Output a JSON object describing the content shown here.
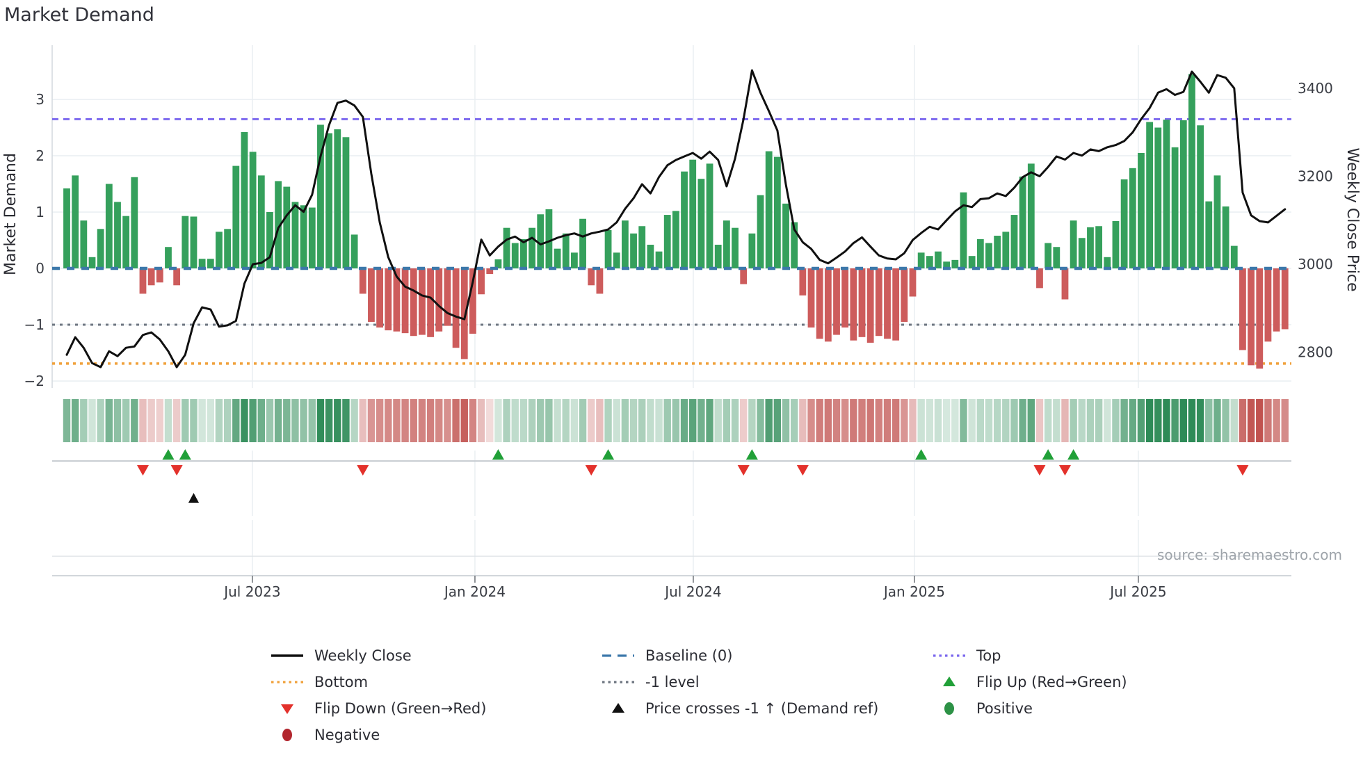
{
  "title": "Market Demand",
  "source": "source: sharemaestro.com",
  "axes": {
    "left_label": "Market Demand",
    "right_label": "Weekly Close Price",
    "left_ticks": [
      3,
      2,
      1,
      0,
      -1,
      -2
    ],
    "right_ticks": [
      3400,
      3200,
      3000,
      2800
    ],
    "x_ticks": [
      {
        "label": "Jul 2023",
        "week": 21.94
      },
      {
        "label": "Jan 2024",
        "week": 48.25
      },
      {
        "label": "Jul 2024",
        "week": 74.06
      },
      {
        "label": "Jan 2025",
        "week": 100.2
      },
      {
        "label": "Jul 2025",
        "week": 126.67
      }
    ]
  },
  "chart_data": {
    "type": "bar+line",
    "x_unit": "week_index",
    "demand_ylim": [
      -2.1,
      3.65
    ],
    "price_ylim": [
      2755,
      3500
    ],
    "levels": {
      "baseline": 0,
      "top": 2.65,
      "bottom": -1.69,
      "minus1": -1
    },
    "demand": [
      1.42,
      1.65,
      0.85,
      0.2,
      0.7,
      1.5,
      1.18,
      0.93,
      1.62,
      -0.45,
      -0.3,
      -0.25,
      0.38,
      -0.3,
      0.93,
      0.92,
      0.17,
      0.17,
      0.65,
      0.7,
      1.82,
      2.42,
      2.07,
      1.65,
      1.0,
      1.55,
      1.45,
      1.18,
      1.12,
      1.08,
      2.55,
      2.4,
      2.47,
      2.33,
      0.6,
      -0.45,
      -0.95,
      -1.05,
      -1.1,
      -1.12,
      -1.15,
      -1.2,
      -1.18,
      -1.22,
      -1.12,
      -1.02,
      -1.41,
      -1.61,
      -1.16,
      -0.46,
      -0.1,
      0.16,
      0.72,
      0.45,
      0.52,
      0.72,
      0.96,
      1.05,
      0.35,
      0.62,
      0.28,
      0.88,
      -0.3,
      -0.45,
      0.68,
      0.28,
      0.85,
      0.62,
      0.75,
      0.42,
      0.3,
      0.95,
      1.02,
      1.72,
      1.93,
      1.59,
      1.86,
      0.42,
      0.85,
      0.72,
      -0.28,
      0.62,
      1.3,
      2.08,
      1.98,
      1.15,
      0.82,
      -0.48,
      -1.05,
      -1.25,
      -1.3,
      -1.18,
      -1.05,
      -1.28,
      -1.22,
      -1.32,
      -1.2,
      -1.25,
      -1.28,
      -0.95,
      -0.5,
      0.28,
      0.22,
      0.3,
      0.12,
      0.15,
      1.35,
      0.22,
      0.52,
      0.45,
      0.58,
      0.65,
      0.95,
      1.63,
      1.86,
      -0.35,
      0.45,
      0.38,
      -0.55,
      0.85,
      0.54,
      0.73,
      0.75,
      0.2,
      0.84,
      1.58,
      1.78,
      2.05,
      2.6,
      2.5,
      2.64,
      2.15,
      2.63,
      3.45,
      2.54,
      1.19,
      1.65,
      1.1,
      0.4,
      -1.45,
      -1.72,
      -1.78,
      -1.3,
      -1.12,
      -1.08
    ],
    "price": [
      2794,
      2834,
      2810,
      2775,
      2766,
      2802,
      2791,
      2810,
      2813,
      2839,
      2845,
      2829,
      2802,
      2766,
      2794,
      2866,
      2902,
      2897,
      2858,
      2861,
      2871,
      2956,
      3000,
      3003,
      3016,
      3082,
      3111,
      3134,
      3119,
      3158,
      3245,
      3316,
      3367,
      3372,
      3361,
      3335,
      3206,
      3095,
      3016,
      2972,
      2949,
      2940,
      2929,
      2924,
      2905,
      2889,
      2881,
      2875,
      2960,
      3056,
      3020,
      3040,
      3056,
      3063,
      3050,
      3060,
      3045,
      3052,
      3060,
      3066,
      3070,
      3063,
      3070,
      3074,
      3079,
      3095,
      3126,
      3150,
      3182,
      3161,
      3198,
      3225,
      3237,
      3245,
      3253,
      3240,
      3256,
      3237,
      3177,
      3240,
      3330,
      3441,
      3390,
      3348,
      3304,
      3182,
      3079,
      3050,
      3035,
      3010,
      3002,
      3015,
      3029,
      3048,
      3061,
      3040,
      3020,
      3013,
      3011,
      3025,
      3055,
      3071,
      3085,
      3079,
      3100,
      3120,
      3134,
      3130,
      3148,
      3150,
      3161,
      3155,
      3174,
      3198,
      3209,
      3200,
      3221,
      3245,
      3238,
      3253,
      3247,
      3261,
      3257,
      3266,
      3271,
      3280,
      3300,
      3330,
      3355,
      3390,
      3398,
      3385,
      3392,
      3438,
      3415,
      3390,
      3430,
      3424,
      3400,
      3163,
      3111,
      3098,
      3095,
      3110,
      3125
    ],
    "markers": {
      "flip_up_weeks": [
        12,
        14,
        51,
        64,
        81,
        101,
        116,
        119
      ],
      "flip_down_weeks": [
        9,
        13,
        35,
        62,
        80,
        87,
        115,
        118,
        139
      ],
      "price_cross_up_weeks": [
        15
      ]
    }
  },
  "legend": {
    "items": [
      {
        "label": "Weekly Close",
        "swatch": "solid",
        "color": "#111111",
        "col": 0,
        "row": 0
      },
      {
        "label": "Bottom",
        "swatch": "dotted",
        "color": "#f0a13b",
        "col": 0,
        "row": 1
      },
      {
        "label": "Flip Down (Green→Red)",
        "swatch": "tri-down",
        "color": "#e3312b",
        "col": 0,
        "row": 2
      },
      {
        "label": "Negative",
        "swatch": "dot",
        "color": "#b2262e",
        "col": 0,
        "row": 3
      },
      {
        "label": "Baseline (0)",
        "swatch": "dashed",
        "color": "#3c78aa",
        "col": 1,
        "row": 0
      },
      {
        "label": "-1 level",
        "swatch": "dotted",
        "color": "#6e7680",
        "col": 1,
        "row": 1
      },
      {
        "label": "Price crosses -1 ↑ (Demand ref)",
        "swatch": "tri-up",
        "color": "#111111",
        "col": 1,
        "row": 2
      },
      {
        "label": "Top",
        "swatch": "dotted",
        "color": "#7b68ee",
        "col": 2,
        "row": 0
      },
      {
        "label": "Flip Up (Red→Green)",
        "swatch": "tri-up",
        "color": "#21a038",
        "col": 2,
        "row": 1
      },
      {
        "label": "Positive",
        "swatch": "dot",
        "color": "#2d9246",
        "col": 2,
        "row": 2
      }
    ]
  },
  "colors": {
    "bar_positive": "#35a05c",
    "bar_negative": "#cd5c5c",
    "price_line": "#101010",
    "baseline": "#3c78aa",
    "top_line": "#7b68ee",
    "bottom_line": "#f0a13b",
    "minus1_line": "#6e7680",
    "heat_positive": "#2e8b57",
    "heat_negative": "#c0504d",
    "grid": "#e9eef2",
    "tick_text": "#3a3d44"
  }
}
